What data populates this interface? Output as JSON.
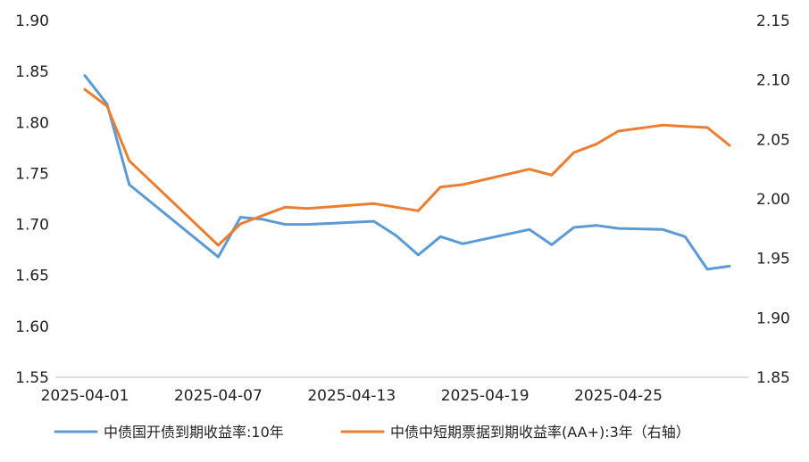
{
  "chart_data": {
    "type": "line",
    "x_tick_labels": [
      "2025-04-01",
      "2025-04-07",
      "2025-04-13",
      "2025-04-19",
      "2025-04-25"
    ],
    "y_left": {
      "range": [
        1.55,
        1.9
      ],
      "ticks": [
        "1.90",
        "1.85",
        "1.80",
        "1.75",
        "1.70",
        "1.65",
        "1.60",
        "1.55"
      ]
    },
    "y_right": {
      "range": [
        1.85,
        2.15
      ],
      "ticks": [
        "2.15",
        "2.10",
        "2.05",
        "2.00",
        "1.95",
        "1.90",
        "1.85"
      ]
    },
    "legend_position": "bottom",
    "grid": false,
    "series": [
      {
        "name": "中债国开债到期收益率:10年",
        "axis": "left",
        "color": "#5B9BD5",
        "points": [
          {
            "x": "2025-04-01",
            "y": 1.846
          },
          {
            "x": "2025-04-02",
            "y": 1.818
          },
          {
            "x": "2025-04-03",
            "y": 1.739
          },
          {
            "x": "2025-04-07",
            "y": 1.668
          },
          {
            "x": "2025-04-08",
            "y": 1.707
          },
          {
            "x": "2025-04-09",
            "y": 1.705
          },
          {
            "x": "2025-04-10",
            "y": 1.7
          },
          {
            "x": "2025-04-11",
            "y": 1.7
          },
          {
            "x": "2025-04-14",
            "y": 1.703
          },
          {
            "x": "2025-04-15",
            "y": 1.689
          },
          {
            "x": "2025-04-16",
            "y": 1.67
          },
          {
            "x": "2025-04-17",
            "y": 1.688
          },
          {
            "x": "2025-04-18",
            "y": 1.681
          },
          {
            "x": "2025-04-21",
            "y": 1.695
          },
          {
            "x": "2025-04-22",
            "y": 1.68
          },
          {
            "x": "2025-04-23",
            "y": 1.697
          },
          {
            "x": "2025-04-24",
            "y": 1.699
          },
          {
            "x": "2025-04-25",
            "y": 1.696
          },
          {
            "x": "2025-04-27",
            "y": 1.695
          },
          {
            "x": "2025-04-28",
            "y": 1.688
          },
          {
            "x": "2025-04-29",
            "y": 1.656
          },
          {
            "x": "2025-04-30",
            "y": 1.659
          }
        ]
      },
      {
        "name": "中债中短期票据到期收益率(AA+):3年（右轴）",
        "axis": "right",
        "color": "#ED7D31",
        "points": [
          {
            "x": "2025-04-01",
            "y": 2.092
          },
          {
            "x": "2025-04-02",
            "y": 2.078
          },
          {
            "x": "2025-04-03",
            "y": 2.032
          },
          {
            "x": "2025-04-07",
            "y": 1.961
          },
          {
            "x": "2025-04-08",
            "y": 1.979
          },
          {
            "x": "2025-04-10",
            "y": 1.993
          },
          {
            "x": "2025-04-11",
            "y": 1.992
          },
          {
            "x": "2025-04-14",
            "y": 1.996
          },
          {
            "x": "2025-04-15",
            "y": 1.993
          },
          {
            "x": "2025-04-16",
            "y": 1.99
          },
          {
            "x": "2025-04-17",
            "y": 2.01
          },
          {
            "x": "2025-04-18",
            "y": 2.012
          },
          {
            "x": "2025-04-21",
            "y": 2.025
          },
          {
            "x": "2025-04-22",
            "y": 2.02
          },
          {
            "x": "2025-04-23",
            "y": 2.039
          },
          {
            "x": "2025-04-24",
            "y": 2.046
          },
          {
            "x": "2025-04-25",
            "y": 2.057
          },
          {
            "x": "2025-04-27",
            "y": 2.062
          },
          {
            "x": "2025-04-28",
            "y": 2.061
          },
          {
            "x": "2025-04-29",
            "y": 2.06
          },
          {
            "x": "2025-04-30",
            "y": 2.045
          }
        ]
      }
    ]
  }
}
